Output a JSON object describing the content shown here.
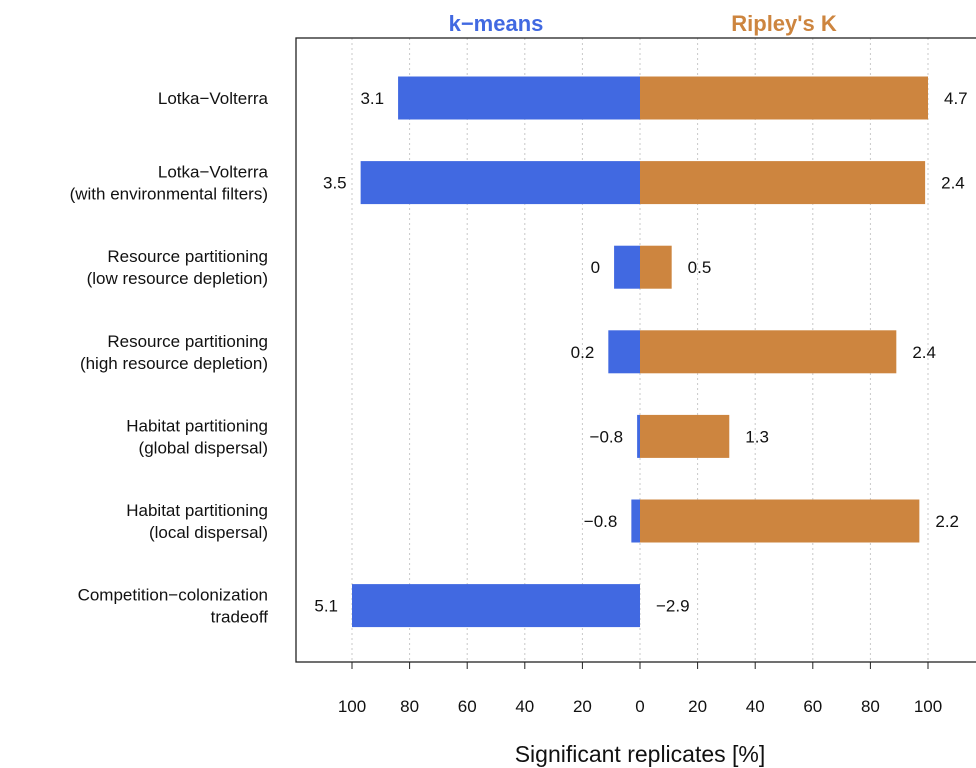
{
  "chart_data": {
    "type": "bar",
    "layout": "diverging-horizontal",
    "categories": [
      [
        "Lotka−Volterra"
      ],
      [
        "Lotka−Volterra",
        "(with environmental filters)"
      ],
      [
        "Resource partitioning",
        "(low resource depletion)"
      ],
      [
        "Resource partitioning",
        "(high resource depletion)"
      ],
      [
        "Habitat partitioning",
        "(global dispersal)"
      ],
      [
        "Habitat partitioning",
        "(local dispersal)"
      ],
      [
        "Competition−colonization",
        "tradeoff"
      ]
    ],
    "series": [
      {
        "name": "k−means",
        "side": "left",
        "color": "#4169E1",
        "values": [
          84,
          97,
          9,
          11,
          1,
          3,
          100
        ],
        "labels": [
          "3.1",
          "3.5",
          "0",
          "0.2",
          "−0.8",
          "−0.8",
          "5.1"
        ]
      },
      {
        "name": "Ripley's K",
        "side": "right",
        "color": "#CD853F",
        "values": [
          100,
          99,
          11,
          89,
          31,
          97,
          0
        ],
        "labels": [
          "4.7",
          "2.4",
          "0.5",
          "2.4",
          "1.3",
          "2.2",
          "−2.9"
        ]
      }
    ],
    "xlabel": "Significant replicates [%]",
    "xticks": [
      100,
      80,
      60,
      40,
      20,
      0,
      20,
      40,
      60,
      80,
      100
    ],
    "xlim": [
      -100,
      100
    ],
    "grid": "vertical dotted"
  }
}
